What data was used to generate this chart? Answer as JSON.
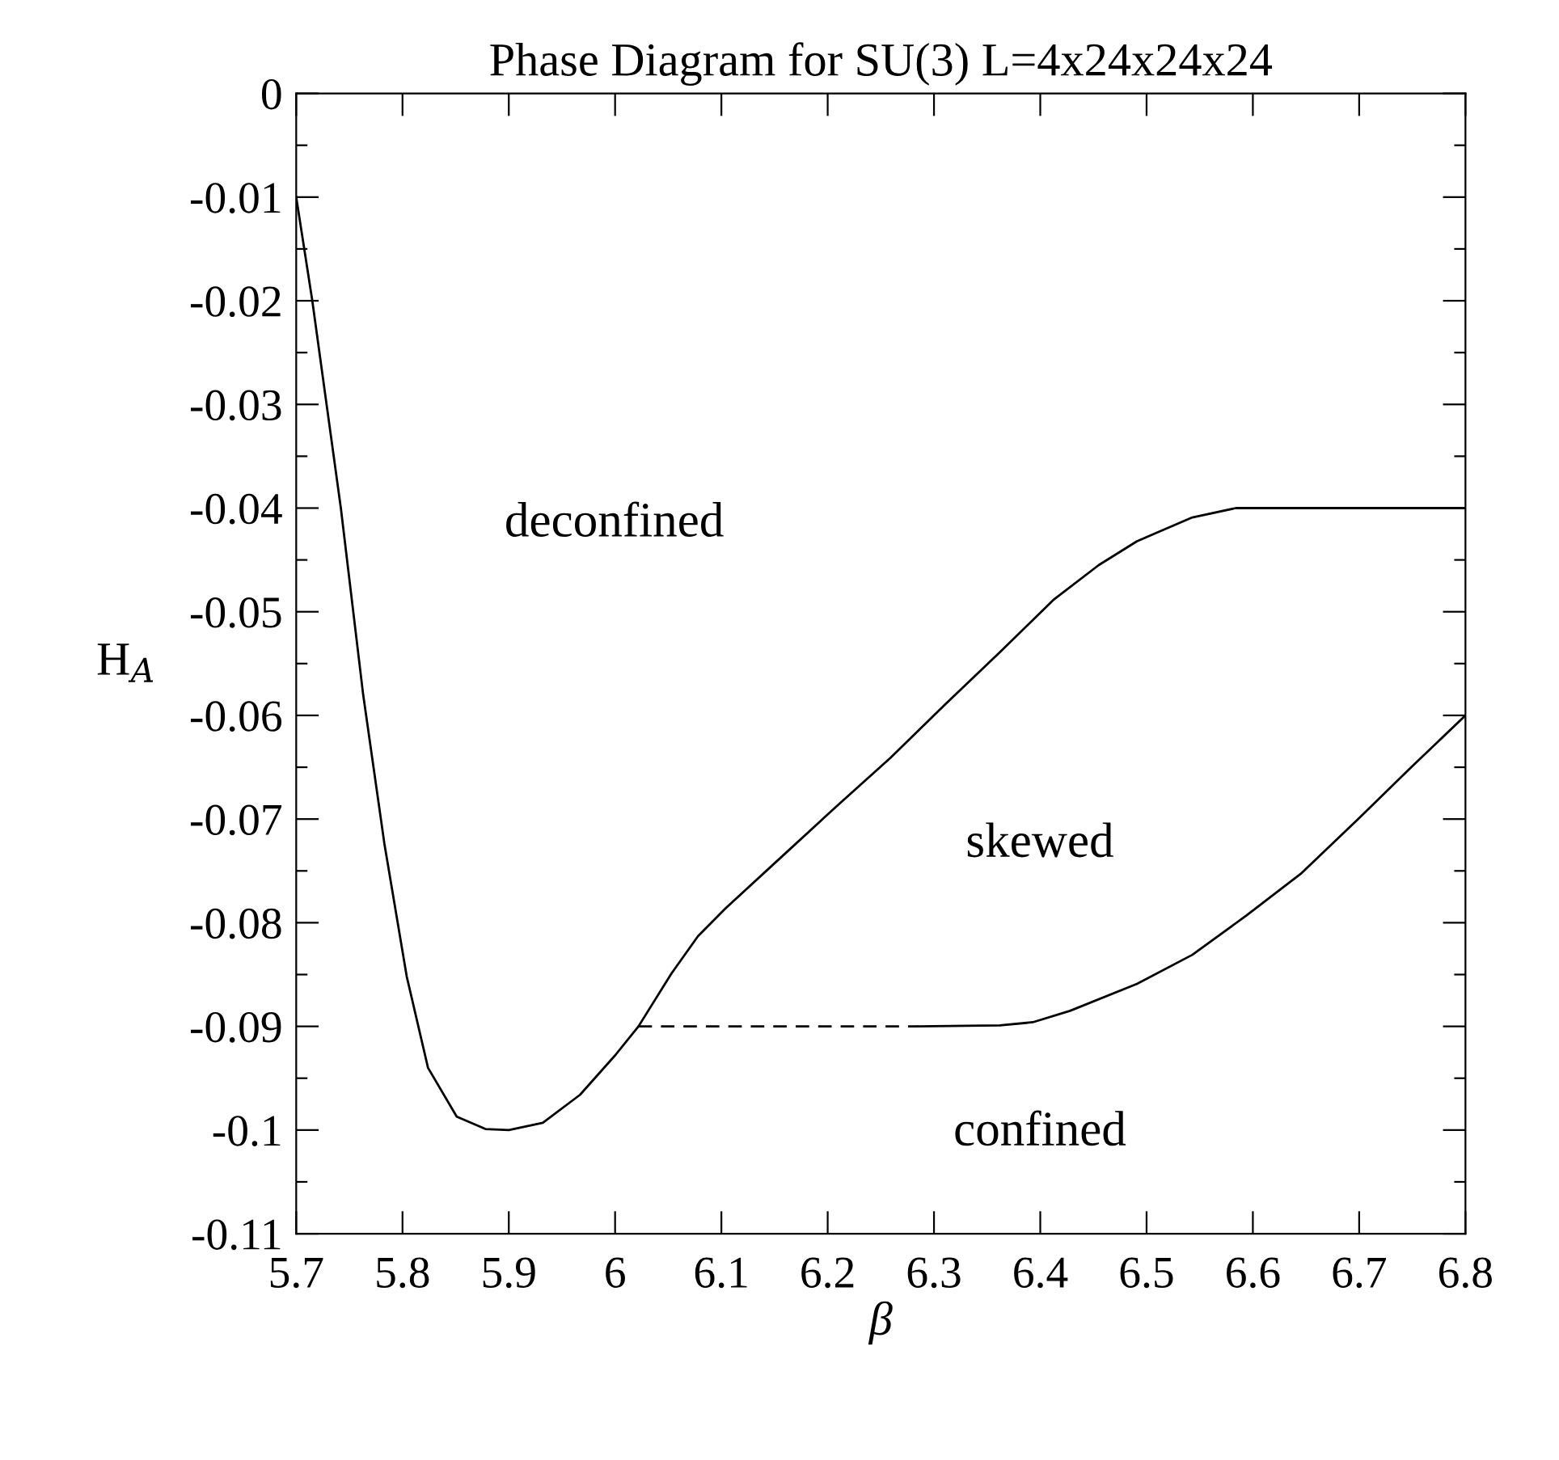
{
  "chart_data": {
    "type": "line",
    "title": "Phase Diagram for SU(3) L=4x24x24x24",
    "xlabel": "β",
    "ylabel": "H$_{A}$",
    "series": [
      {
        "color": "#000000",
        "line_style": "solid",
        "x": [
          5.7,
          5.715,
          5.742,
          5.763,
          5.783,
          5.804,
          5.824,
          5.851,
          5.878,
          5.9,
          5.932,
          5.967,
          6.0,
          6.022,
          6.053,
          6.078,
          6.104,
          6.156,
          6.207,
          6.259,
          6.31,
          6.362,
          6.413,
          6.455,
          6.491,
          6.543,
          6.584,
          6.8
        ],
        "values": [
          -0.01,
          -0.0199,
          -0.04,
          -0.058,
          -0.0724,
          -0.0852,
          -0.094,
          -0.0987,
          -0.0999,
          -0.1,
          -0.0993,
          -0.0966,
          -0.0928,
          -0.09,
          -0.0849,
          -0.0813,
          -0.0786,
          -0.0737,
          -0.0689,
          -0.0641,
          -0.059,
          -0.0539,
          -0.0488,
          -0.0455,
          -0.0432,
          -0.0409,
          -0.04,
          -0.04
        ]
      },
      {
        "color": "#000000",
        "line_style": "dashed",
        "x": [
          6.022,
          6.285
        ],
        "values": [
          -0.09,
          -0.09
        ]
      },
      {
        "color": "#000000",
        "line_style": "solid",
        "x": [
          6.285,
          6.362,
          6.393,
          6.428,
          6.491,
          6.543,
          6.594,
          6.646,
          6.698,
          6.749,
          6.8
        ],
        "values": [
          -0.09,
          -0.0899,
          -0.0896,
          -0.0885,
          -0.0859,
          -0.0831,
          -0.0793,
          -0.0752,
          -0.0701,
          -0.065,
          -0.06
        ]
      }
    ],
    "annotations": [
      "deconfined",
      "skewed",
      "confined"
    ],
    "xlim": [
      5.7,
      6.8
    ],
    "ylim": [
      -0.11,
      0
    ],
    "xticks": [
      5.7,
      5.8,
      5.9,
      6,
      6.1,
      6.2,
      6.3,
      6.4,
      6.5,
      6.6,
      6.7,
      6.8
    ],
    "yticks": [
      0,
      {
        "value": -0.005,
        "label": null
      },
      -0.01,
      {
        "value": -0.015,
        "label": null
      },
      -0.02,
      {
        "value": -0.025,
        "label": null
      },
      -0.03,
      {
        "value": -0.035,
        "label": null
      },
      -0.04,
      {
        "value": -0.045,
        "label": null
      },
      -0.05,
      {
        "value": -0.055,
        "label": null
      },
      -0.06,
      {
        "value": -0.065,
        "label": null
      },
      -0.07,
      {
        "value": -0.075,
        "label": null
      },
      -0.08,
      {
        "value": -0.085,
        "label": null
      },
      -0.09,
      {
        "value": -0.095,
        "label": null
      },
      -0.1,
      {
        "value": -0.105,
        "label": null
      },
      -0.11
    ],
    "grid": false,
    "legend": false,
    "marker": "none"
  }
}
